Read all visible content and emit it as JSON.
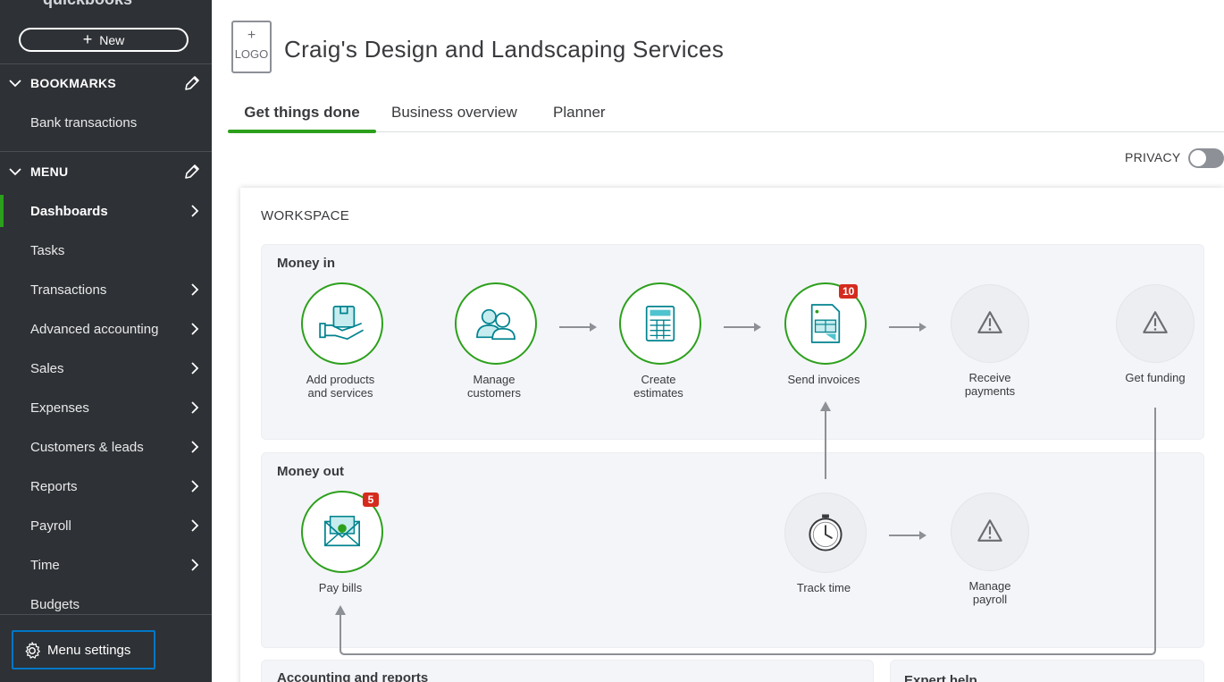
{
  "brand": "quickbooks",
  "sidebar": {
    "new_label": "New",
    "bookmarks_label": "BOOKMARKS",
    "bookmarks": [
      {
        "label": "Bank transactions"
      }
    ],
    "menu_label": "MENU",
    "items": [
      {
        "label": "Dashboards",
        "arrow": true,
        "active": true
      },
      {
        "label": "Tasks",
        "arrow": false
      },
      {
        "label": "Transactions",
        "arrow": true
      },
      {
        "label": "Advanced accounting",
        "arrow": true
      },
      {
        "label": "Sales",
        "arrow": true
      },
      {
        "label": "Expenses",
        "arrow": true
      },
      {
        "label": "Customers & leads",
        "arrow": true
      },
      {
        "label": "Reports",
        "arrow": true
      },
      {
        "label": "Payroll",
        "arrow": true
      },
      {
        "label": "Time",
        "arrow": true
      },
      {
        "label": "Budgets",
        "arrow": false
      }
    ],
    "menu_settings_label": "Menu settings"
  },
  "header": {
    "logo_plus": "+",
    "logo_text": "LOGO",
    "company_name": "Craig's Design and Landscaping Services",
    "tabs": [
      {
        "label": "Get things done",
        "active": true
      },
      {
        "label": "Business overview"
      },
      {
        "label": "Planner"
      }
    ],
    "privacy_label": "PRIVACY",
    "privacy_on": false
  },
  "workspace": {
    "title": "WORKSPACE",
    "money_in": {
      "title": "Money in",
      "nodes": [
        {
          "label1": "Add products",
          "label2": "and services",
          "icon": "products-hand-icon",
          "state": "green"
        },
        {
          "label1": "Manage",
          "label2": "customers",
          "icon": "customers-icon",
          "state": "green"
        },
        {
          "label1": "Create",
          "label2": "estimates",
          "icon": "calculator-icon",
          "state": "green"
        },
        {
          "label1": "Send invoices",
          "label2": "",
          "icon": "invoice-icon",
          "state": "green",
          "badge": "10"
        },
        {
          "label1": "Receive",
          "label2": "payments",
          "icon": "warning-icon",
          "state": "grey"
        },
        {
          "label1": "Get funding",
          "label2": "",
          "icon": "warning-icon",
          "state": "grey"
        }
      ]
    },
    "money_out": {
      "title": "Money out",
      "nodes": [
        {
          "label1": "Pay bills",
          "label2": "",
          "icon": "bills-envelope-icon",
          "state": "green",
          "badge": "5"
        },
        {
          "label1": "Track time",
          "label2": "",
          "icon": "stopwatch-icon",
          "state": "grey"
        },
        {
          "label1": "Manage",
          "label2": "payroll",
          "icon": "warning-icon",
          "state": "grey"
        }
      ]
    },
    "accounting_title": "Accounting and reports",
    "expert_title": "Expert help"
  },
  "colors": {
    "sidebar_bg": "#2e3135",
    "accent_green": "#2ca01c",
    "badge_red": "#d52b1e",
    "focus_blue": "#0077c5",
    "icon_teal": "#0097a7"
  }
}
